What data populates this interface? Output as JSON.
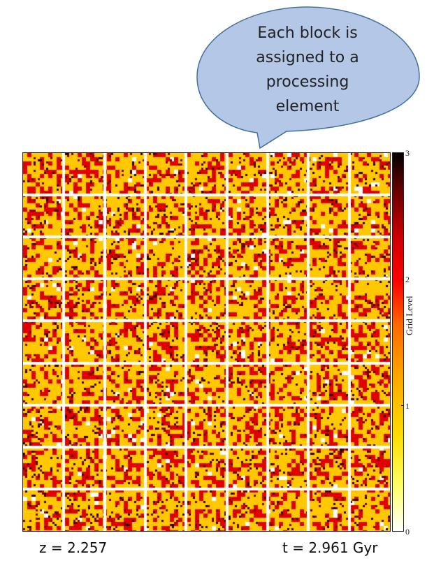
{
  "callout": {
    "lines": [
      "Each block is",
      "assigned to a",
      "processing",
      "element"
    ],
    "fill_color": "#b4c7e7",
    "stroke_color": "#41719c"
  },
  "simulation": {
    "redshift_label": "z = 2.257",
    "time_label": "t = 2.961 Gyr"
  },
  "grid": {
    "block_rows": 9,
    "block_cols": 9
  },
  "colorbar": {
    "label": "Grid Level",
    "ticks": [
      "0",
      "1",
      "2",
      "3"
    ],
    "range": [
      0,
      3
    ],
    "colors": [
      "#ffffff",
      "#ffcc00",
      "#ff0000",
      "#000000"
    ]
  }
}
